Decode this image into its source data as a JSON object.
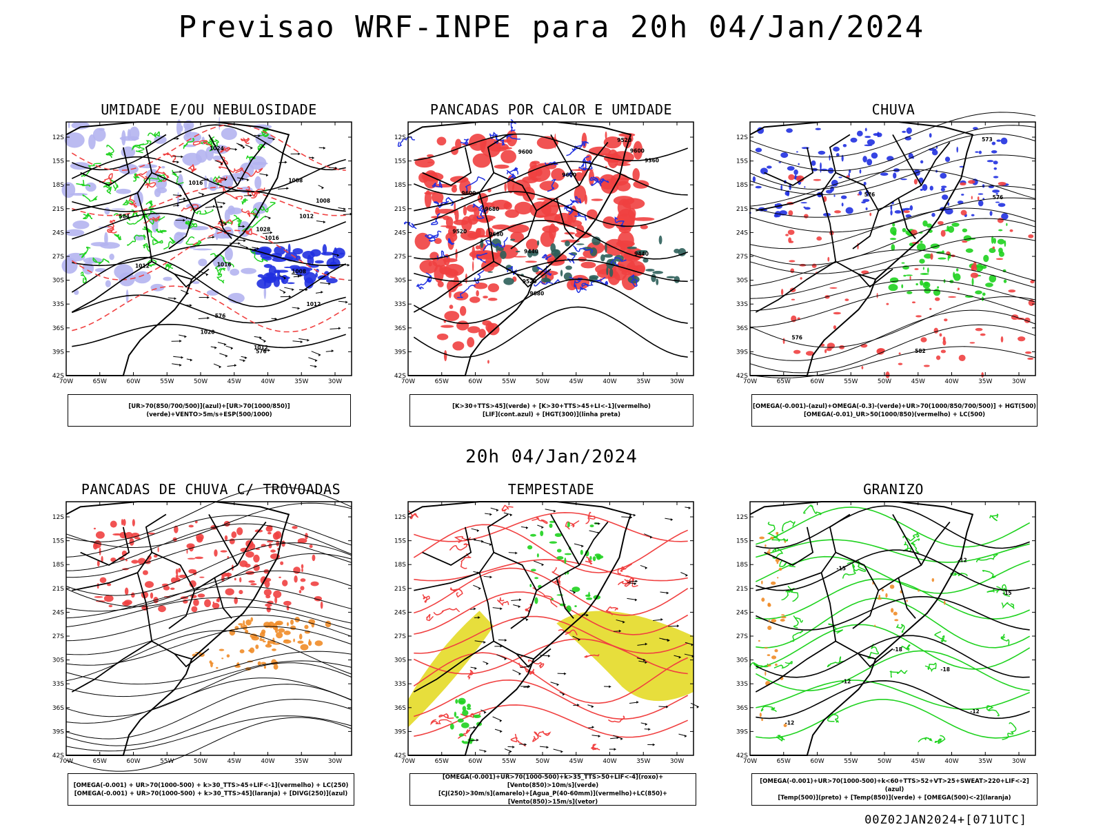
{
  "header": {
    "title": "Previsao WRF-INPE  para 20h 04/Jan/2024",
    "mid_title": "20h 04/Jan/2024",
    "footer": "00Z02JAN2024+[071UTC]"
  },
  "axes": {
    "lat_ticks": [
      "12S",
      "15S",
      "18S",
      "21S",
      "24S",
      "27S",
      "30S",
      "33S",
      "36S",
      "39S",
      "42S"
    ],
    "lon_ticks": [
      "70W",
      "65W",
      "60W",
      "55W",
      "50W",
      "45W",
      "40W",
      "35W",
      "30W"
    ]
  },
  "panels": [
    {
      "title": "UMIDADE E/OU NEBULOSIDADE",
      "legend": [
        "[UR>70(850/700/500)](azul)+[UR>70(1000/850)](verde)+VENTO>5m/s+ESP(500/1000)"
      ],
      "labels": [
        "1012",
        "1008",
        "1008",
        "1012",
        "1016",
        "1012",
        "1008",
        "1012",
        "1016",
        "1020",
        "1024",
        "1028",
        "1016",
        "576",
        "576",
        "584"
      ]
    },
    {
      "title": "PANCADAS POR CALOR E UMIDADE",
      "legend": [
        "[K>30+TTS>45](verde)  +  [K>30+TTS>45+LI<-1](vermelho)",
        "[LIF](cont.azul)  +  [HGT(300)](linha preta)"
      ],
      "labels": [
        "9680",
        "9680",
        "9680",
        "9600",
        "9600",
        "9600",
        "9600",
        "9520",
        "9520",
        "9440",
        "9440",
        "9360",
        "9520"
      ]
    },
    {
      "title": "CHUVA",
      "legend": [
        "[OMEGA(-0.001)-(azul)+OMEGA(-0.3)-(verde)+UR>70(1000/850/700/500)]  +  HGT(500)",
        "[OMEGA(-0.01)_UR>50(1000/850)(vermelho)  +  LC(500)"
      ],
      "labels": [
        "582",
        "576",
        "576",
        "573",
        "576"
      ]
    },
    {
      "title": "PANCADAS DE CHUVA C/ TROVOADAS",
      "legend": [
        "[OMEGA(-0.001)  +  UR>70(1000-500)  +  k>30_TTS>45+LIF<-1](vermelho)  +  LC(250)",
        "[OMEGA(-0.001)  +  UR>70(1000-500)  +  k>30_TTS>45](laranja)  +  [DIVG(250)](azul)"
      ],
      "labels": []
    },
    {
      "title": "TEMPESTADE",
      "legend": [
        "[OMEGA(-0.001)+UR>70(1000-500)+k>35_TTS>50+LIF<-4](roxo)+[Vento(850)>10m/s](verde)",
        "[CJ(250)>30m/s](amarelo)+[Agua_P(40-60mm)](vermelho)+LC(850)+[Vento(850)>15m/s](vetor)"
      ],
      "labels": []
    },
    {
      "title": "GRANIZO",
      "legend": [
        "[OMEGA(-0.001)+UR>70(1000-500)+k<60+TTS>52+VT>25+SWEAT>220+LIF<-2](azul)",
        "[Temp(500)](preto)  +  [Temp(850)](verde)  +  [OMEGA(500)<-2](laranja)"
      ],
      "labels": [
        "-12",
        "-12",
        "-15",
        "-12",
        "-15",
        "-18",
        "-18",
        "-12"
      ]
    }
  ],
  "colors": {
    "black": "#000000",
    "red": "#f04040",
    "green": "#1ed21e",
    "blue": "#2030e0",
    "lightblue": "#b4b4f0",
    "orange": "#f08c28",
    "yellow": "#e6dc32",
    "teal": "#2d5f5a"
  }
}
